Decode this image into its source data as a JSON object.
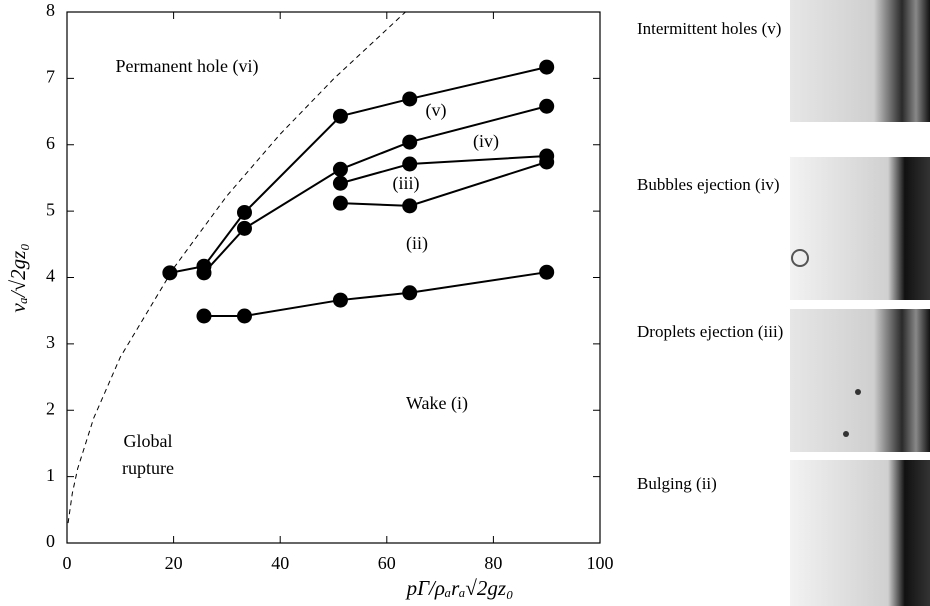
{
  "chart_data": {
    "type": "line",
    "xlabel": "pΓ/ρₐrₐ√2gz₀",
    "ylabel": "vₐ/√2gz₀",
    "xlim": [
      0,
      100
    ],
    "xticks": [
      0,
      20,
      40,
      60,
      80,
      100
    ],
    "ylim": [
      0,
      8
    ],
    "yticks": [
      0,
      1,
      2,
      3,
      4,
      5,
      6,
      7,
      8
    ],
    "grid": false,
    "annotations": [
      "Permanent hole (vi)",
      "(v)",
      "(iv)",
      "(iii)",
      "(ii)",
      "Wake (i)",
      "Global",
      "rupture"
    ],
    "series": [
      {
        "color": "#000000",
        "markers": true,
        "dashed": false,
        "x": [
          19.3,
          25.7,
          33.3,
          51.3,
          64.3,
          90
        ],
        "values": [
          4.07,
          4.17,
          4.98,
          6.43,
          6.69,
          7.17
        ]
      },
      {
        "color": "#000000",
        "markers": true,
        "dashed": false,
        "x": [
          25.7,
          33.3,
          51.3,
          64.3,
          90
        ],
        "values": [
          4.07,
          4.74,
          5.63,
          6.04,
          6.58
        ]
      },
      {
        "color": "#000000",
        "markers": true,
        "dashed": false,
        "x": [
          51.3,
          64.3,
          90
        ],
        "values": [
          5.42,
          5.71,
          5.83
        ]
      },
      {
        "color": "#000000",
        "markers": true,
        "dashed": false,
        "x": [
          51.3,
          64.3,
          90
        ],
        "values": [
          5.12,
          5.08,
          5.74
        ]
      },
      {
        "color": "#000000",
        "markers": true,
        "dashed": false,
        "x": [
          25.7,
          33.3,
          51.3,
          64.3,
          90
        ],
        "values": [
          3.42,
          3.42,
          3.66,
          3.77,
          4.08
        ]
      },
      {
        "color": "#000000",
        "markers": false,
        "dashed": true,
        "x": [
          0.2,
          1,
          2,
          5,
          10,
          20,
          30,
          40,
          50,
          63.5
        ],
        "values": [
          0.3,
          0.75,
          1.12,
          1.88,
          2.8,
          4.14,
          5.23,
          6.16,
          6.99,
          8.0
        ]
      }
    ]
  },
  "panels": [
    "Intermittent holes (v)",
    "Bubbles ejection (iv)",
    "Droplets ejection (iii)",
    "Bulging (ii)"
  ]
}
